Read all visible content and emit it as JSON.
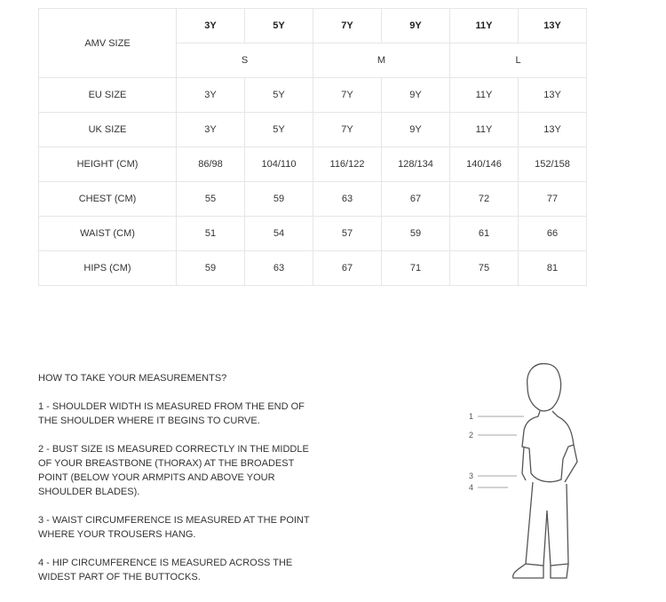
{
  "table": {
    "header_label": "AMV SIZE",
    "sizes": [
      "3Y",
      "5Y",
      "7Y",
      "9Y",
      "11Y",
      "13Y"
    ],
    "groups": [
      "S",
      "M",
      "L"
    ],
    "rows": [
      {
        "label": "EU SIZE",
        "values": [
          "3Y",
          "5Y",
          "7Y",
          "9Y",
          "11Y",
          "13Y"
        ]
      },
      {
        "label": "UK SIZE",
        "values": [
          "3Y",
          "5Y",
          "7Y",
          "9Y",
          "11Y",
          "13Y"
        ]
      },
      {
        "label": "HEIGHT (CM)",
        "values": [
          "86/98",
          "104/110",
          "116/122",
          "128/134",
          "140/146",
          "152/158"
        ]
      },
      {
        "label": "CHEST (CM)",
        "values": [
          "55",
          "59",
          "63",
          "67",
          "72",
          "77"
        ]
      },
      {
        "label": "WAIST (CM)",
        "values": [
          "51",
          "54",
          "57",
          "59",
          "61",
          "66"
        ]
      },
      {
        "label": "HIPS (CM)",
        "values": [
          "59",
          "63",
          "67",
          "71",
          "75",
          "81"
        ]
      }
    ]
  },
  "guide": {
    "title": "HOW TO TAKE YOUR MEASUREMENTS?",
    "items": [
      "1 - SHOULDER WIDTH IS MEASURED FROM THE END OF THE SHOULDER WHERE IT BEGINS TO CURVE.",
      "2 - BUST SIZE IS MEASURED CORRECTLY IN THE MIDDLE OF YOUR BREASTBONE (THORAX) AT THE BROADEST POINT (BELOW YOUR ARMPITS AND ABOVE YOUR SHOULDER BLADES).",
      "3 - WAIST CIRCUMFERENCE IS MEASURED AT THE POINT WHERE YOUR TROUSERS HANG.",
      "4 - HIP CIRCUMFERENCE IS MEASURED ACROSS THE WIDEST PART OF THE BUTTOCKS."
    ]
  },
  "figure": {
    "markers": [
      "1",
      "2",
      "3",
      "4"
    ]
  }
}
